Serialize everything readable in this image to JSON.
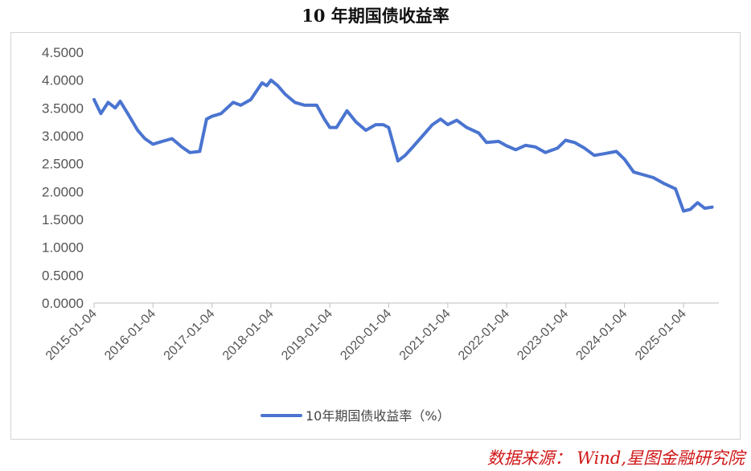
{
  "title": "10 年期国债收益率",
  "source": "数据来源： Wind,星图金融研究院",
  "colors": {
    "line": "#4a74d0",
    "source": "#d01818"
  },
  "chart_data": {
    "type": "line",
    "title": "10 年期国债收益率",
    "ylim": [
      0,
      4.5
    ],
    "y_ticks": [
      "0.0000",
      "0.5000",
      "1.0000",
      "1.5000",
      "2.0000",
      "2.5000",
      "3.0000",
      "3.5000",
      "4.0000",
      "4.5000"
    ],
    "x_ticks": [
      "2015-01-04",
      "2016-01-04",
      "2017-01-04",
      "2018-01-04",
      "2019-01-04",
      "2020-01-04",
      "2021-01-04",
      "2022-01-04",
      "2023-01-04",
      "2024-01-04",
      "2025-01-04"
    ],
    "grid": false,
    "legend": "bottom",
    "series": [
      {
        "name": "10年期国债收益率（%）",
        "color": "#4a74d0",
        "x": [
          "2015-01-04",
          "2015-02-15",
          "2015-04-01",
          "2015-05-15",
          "2015-06-15",
          "2015-08-01",
          "2015-10-01",
          "2015-11-15",
          "2016-01-04",
          "2016-03-01",
          "2016-05-01",
          "2016-07-01",
          "2016-08-20",
          "2016-10-20",
          "2016-12-01",
          "2017-01-04",
          "2017-03-01",
          "2017-05-15",
          "2017-07-01",
          "2017-09-01",
          "2017-11-10",
          "2017-12-10",
          "2018-01-04",
          "2018-02-15",
          "2018-04-01",
          "2018-06-01",
          "2018-08-01",
          "2018-10-15",
          "2018-12-01",
          "2019-01-04",
          "2019-02-15",
          "2019-04-20",
          "2019-06-15",
          "2019-08-15",
          "2019-10-15",
          "2019-12-01",
          "2020-01-04",
          "2020-03-01",
          "2020-04-15",
          "2020-06-01",
          "2020-08-01",
          "2020-10-01",
          "2020-11-20",
          "2021-01-04",
          "2021-03-01",
          "2021-05-01",
          "2021-07-15",
          "2021-09-01",
          "2021-11-15",
          "2022-01-04",
          "2022-03-01",
          "2022-05-01",
          "2022-07-01",
          "2022-09-01",
          "2022-11-15",
          "2023-01-04",
          "2023-03-01",
          "2023-05-01",
          "2023-07-01",
          "2023-09-01",
          "2023-11-15",
          "2024-01-04",
          "2024-03-01",
          "2024-05-01",
          "2024-07-01",
          "2024-09-01",
          "2024-11-15",
          "2025-01-04",
          "2025-02-15",
          "2025-04-01",
          "2025-05-15",
          "2025-06-30"
        ],
        "values": [
          3.65,
          3.4,
          3.6,
          3.5,
          3.62,
          3.4,
          3.1,
          2.95,
          2.85,
          2.9,
          2.95,
          2.8,
          2.7,
          2.72,
          3.3,
          3.35,
          3.4,
          3.6,
          3.55,
          3.65,
          3.95,
          3.9,
          4.0,
          3.9,
          3.75,
          3.6,
          3.55,
          3.55,
          3.3,
          3.15,
          3.15,
          3.45,
          3.25,
          3.1,
          3.2,
          3.2,
          3.15,
          2.55,
          2.65,
          2.8,
          3.0,
          3.2,
          3.3,
          3.2,
          3.28,
          3.15,
          3.05,
          2.88,
          2.9,
          2.82,
          2.75,
          2.83,
          2.8,
          2.7,
          2.78,
          2.92,
          2.88,
          2.78,
          2.65,
          2.68,
          2.72,
          2.58,
          2.35,
          2.3,
          2.25,
          2.15,
          2.05,
          1.65,
          1.68,
          1.8,
          1.7,
          1.72
        ]
      }
    ]
  }
}
